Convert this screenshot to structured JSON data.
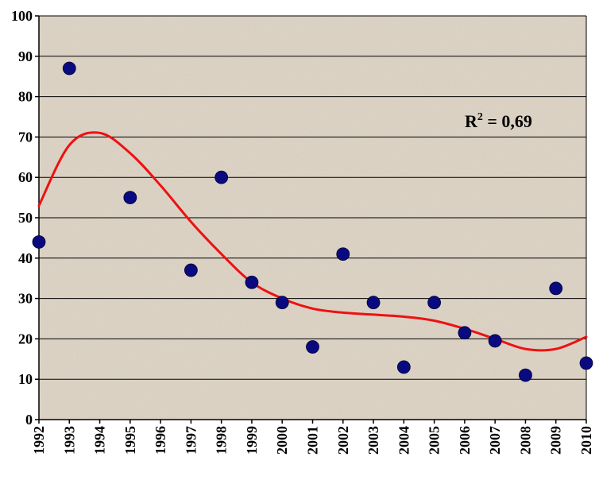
{
  "chart_data": {
    "type": "scatter",
    "title": "",
    "xlabel": "",
    "ylabel": "",
    "ylim": [
      0,
      100
    ],
    "y_ticks": [
      0,
      10,
      20,
      30,
      40,
      50,
      60,
      70,
      80,
      90,
      100
    ],
    "x_tick_labels": [
      "1992",
      "1993",
      "1994",
      "1995",
      "1996",
      "1997",
      "1998",
      "1999",
      "2000",
      "2001",
      "2002",
      "2003",
      "2004",
      "2005",
      "2006",
      "2007",
      "2008",
      "2009",
      "2010"
    ],
    "grid": "horizontal",
    "legend": "none",
    "series": [
      {
        "points": [
          {
            "x": 1992,
            "y": 44
          },
          {
            "x": 1993,
            "y": 87
          },
          {
            "x": 1995,
            "y": 55
          },
          {
            "x": 1997,
            "y": 37
          },
          {
            "x": 1998,
            "y": 60
          },
          {
            "x": 1999,
            "y": 34
          },
          {
            "x": 2000,
            "y": 29
          },
          {
            "x": 2001,
            "y": 18
          },
          {
            "x": 2002,
            "y": 41
          },
          {
            "x": 2003,
            "y": 29
          },
          {
            "x": 2004,
            "y": 13
          },
          {
            "x": 2005,
            "y": 29
          },
          {
            "x": 2006,
            "y": 21.5
          },
          {
            "x": 2007,
            "y": 19.5
          },
          {
            "x": 2008,
            "y": 11
          },
          {
            "x": 2009,
            "y": 32.5
          },
          {
            "x": 2010,
            "y": 14
          }
        ]
      }
    ],
    "trendline": {
      "type": "polynomial",
      "points": [
        {
          "x": 1992,
          "y": 53
        },
        {
          "x": 1993,
          "y": 68
        },
        {
          "x": 1994,
          "y": 71
        },
        {
          "x": 1995,
          "y": 66
        },
        {
          "x": 1996,
          "y": 58
        },
        {
          "x": 1997,
          "y": 49
        },
        {
          "x": 1998,
          "y": 41
        },
        {
          "x": 1999,
          "y": 34
        },
        {
          "x": 2000,
          "y": 30
        },
        {
          "x": 2001,
          "y": 27.5
        },
        {
          "x": 2002,
          "y": 26.5
        },
        {
          "x": 2003,
          "y": 26
        },
        {
          "x": 2004,
          "y": 25.5
        },
        {
          "x": 2005,
          "y": 24.5
        },
        {
          "x": 2006,
          "y": 22.5
        },
        {
          "x": 2007,
          "y": 20
        },
        {
          "x": 2008,
          "y": 17.5
        },
        {
          "x": 2009,
          "y": 17.5
        },
        {
          "x": 2010,
          "y": 20.5
        }
      ]
    },
    "annotation": {
      "text_base": "R",
      "text_sup": "2",
      "text_rest": " = 0,69"
    },
    "colors": {
      "plot_background": "#ddd3c4",
      "gridline": "#000000",
      "marker": "#0a0a80",
      "trendline": "#ee1111"
    }
  }
}
